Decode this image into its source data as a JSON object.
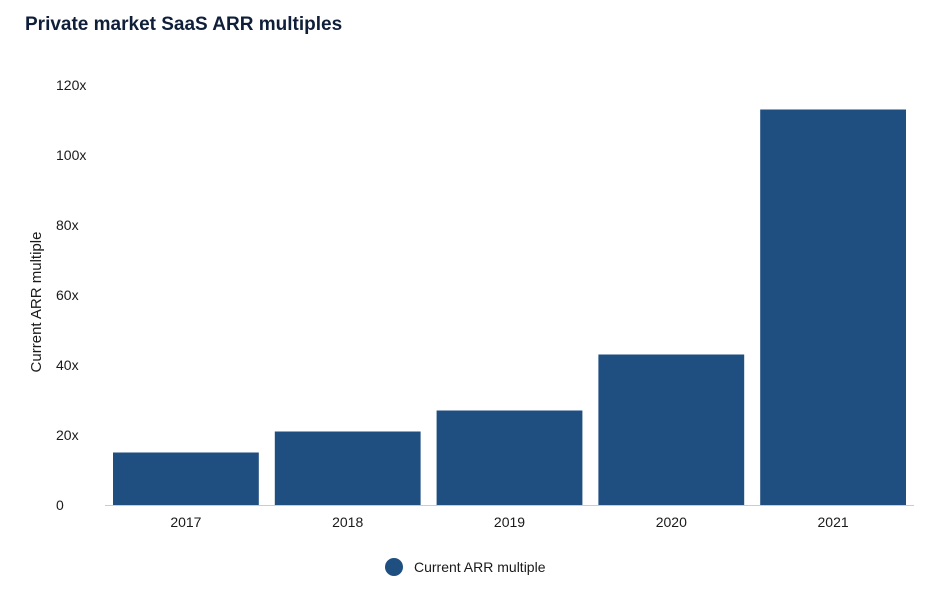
{
  "chart_data": {
    "type": "bar",
    "title": "Private market SaaS ARR multiples",
    "xlabel": "",
    "ylabel": "Current ARR multiple",
    "categories": [
      "2017",
      "2018",
      "2019",
      "2020",
      "2021"
    ],
    "series": [
      {
        "name": "Current ARR multiple",
        "values": [
          15,
          21,
          27,
          43,
          113
        ]
      }
    ],
    "ylim": [
      0,
      120
    ],
    "yticks": [
      0,
      20,
      40,
      60,
      80,
      100,
      120
    ],
    "ytick_labels": [
      "0",
      "20x",
      "40x",
      "60x",
      "80x",
      "100x",
      "120x"
    ],
    "grid": false,
    "legend_position": "bottom-center",
    "colors": {
      "bar": "#1f4e80",
      "axis": "#cccccc",
      "title": "#0f1f3a"
    }
  }
}
